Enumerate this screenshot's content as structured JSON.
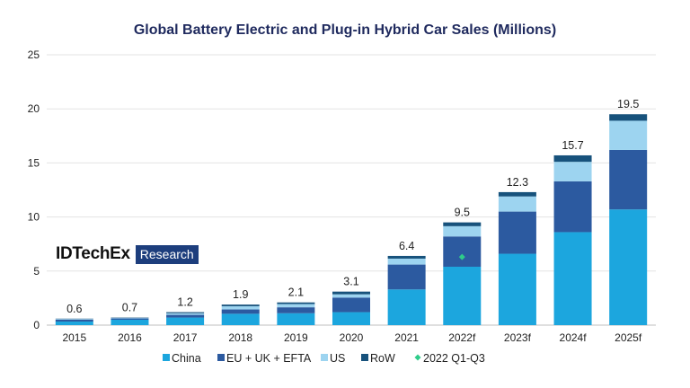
{
  "chart_data": {
    "type": "bar",
    "stacked": true,
    "title": "Global Battery Electric and Plug-in Hybrid Car Sales (Millions)",
    "categories": [
      "2015",
      "2016",
      "2017",
      "2018",
      "2019",
      "2020",
      "2021",
      "2022f",
      "2023f",
      "2024f",
      "2025f"
    ],
    "series": [
      {
        "name": "China",
        "color": "#1ca6de",
        "values": [
          0.33,
          0.5,
          0.7,
          1.05,
          1.1,
          1.2,
          3.3,
          5.4,
          6.6,
          8.6,
          10.7
        ]
      },
      {
        "name": "EU + UK + EFTA",
        "color": "#2c5aa0",
        "values": [
          0.18,
          0.12,
          0.25,
          0.4,
          0.55,
          1.35,
          2.3,
          2.8,
          3.9,
          4.7,
          5.5
        ]
      },
      {
        "name": "US",
        "color": "#9dd4f0",
        "values": [
          0.06,
          0.05,
          0.15,
          0.3,
          0.3,
          0.3,
          0.55,
          0.95,
          1.4,
          1.8,
          2.7
        ]
      },
      {
        "name": "RoW",
        "color": "#17527c",
        "values": [
          0.03,
          0.03,
          0.1,
          0.15,
          0.15,
          0.25,
          0.25,
          0.35,
          0.4,
          0.6,
          0.6
        ]
      }
    ],
    "totals": [
      "0.6",
      "0.7",
      "1.2",
      "1.9",
      "2.1",
      "3.1",
      "6.4",
      "9.5",
      "12.3",
      "15.7",
      "19.5"
    ],
    "markers": {
      "name": "2022 Q1-Q3",
      "color": "#2ecc8a",
      "category": "2022f",
      "value": 6.3
    },
    "ylim": [
      0,
      25
    ],
    "yticks": [
      0,
      5,
      10,
      15,
      20,
      25
    ],
    "grid": true,
    "legend_position": "bottom"
  },
  "logo": {
    "name": "IDTechEx",
    "tag": "Research"
  }
}
